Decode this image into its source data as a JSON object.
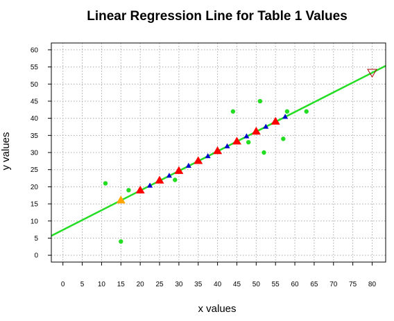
{
  "chart_data": {
    "type": "scatter",
    "title": "Linear Regression Line for Table 1 Values",
    "xlabel": "x values",
    "ylabel": "y values",
    "xlim": [
      -3,
      83.5
    ],
    "ylim": [
      -2,
      62
    ],
    "x_ticks": [
      0,
      5,
      10,
      15,
      20,
      25,
      30,
      35,
      40,
      45,
      50,
      55,
      60,
      65,
      70,
      75,
      80
    ],
    "y_ticks": [
      0,
      5,
      10,
      15,
      20,
      25,
      30,
      35,
      40,
      45,
      50,
      55,
      60
    ],
    "grid": true,
    "colors": {
      "regression_line": "#22dd22",
      "observed": "#22dd22",
      "fitted_red": "#ff0000",
      "fitted_blue": "#0000cc",
      "highlight": "#ffa500",
      "grid": "#aaaaaa"
    },
    "regression_line": {
      "intercept": 7.4,
      "slope": 0.574
    },
    "series": [
      {
        "marker": "circle",
        "color": "#22dd22",
        "points": [
          [
            11,
            21
          ],
          [
            15,
            4
          ],
          [
            17,
            19
          ],
          [
            29,
            22
          ],
          [
            44,
            42
          ],
          [
            48,
            33
          ],
          [
            51,
            45
          ],
          [
            52,
            30
          ],
          [
            57,
            34
          ],
          [
            58,
            42
          ],
          [
            63,
            42
          ]
        ]
      },
      {
        "marker": "triangle",
        "color": "#ff0000",
        "points": [
          [
            20,
            18.9
          ],
          [
            25,
            21.8
          ],
          [
            30,
            24.6
          ],
          [
            35,
            27.5
          ],
          [
            40,
            30.4
          ],
          [
            45,
            33.2
          ],
          [
            50,
            36.1
          ],
          [
            55,
            39.0
          ]
        ]
      },
      {
        "marker": "triangle-small",
        "color": "#0000cc",
        "points": [
          [
            22.5,
            20.3
          ],
          [
            27.5,
            23.2
          ],
          [
            32.5,
            26.1
          ],
          [
            37.5,
            28.9
          ],
          [
            42.5,
            31.8
          ],
          [
            47.5,
            34.7
          ],
          [
            52.5,
            37.5
          ],
          [
            57.5,
            40.4
          ]
        ]
      },
      {
        "marker": "triangle",
        "color": "#ffa500",
        "points": [
          [
            15,
            16.0
          ]
        ]
      },
      {
        "marker": "triangle-down-open",
        "color": "#aa0000",
        "points": [
          [
            80,
            53.3
          ]
        ]
      }
    ]
  }
}
